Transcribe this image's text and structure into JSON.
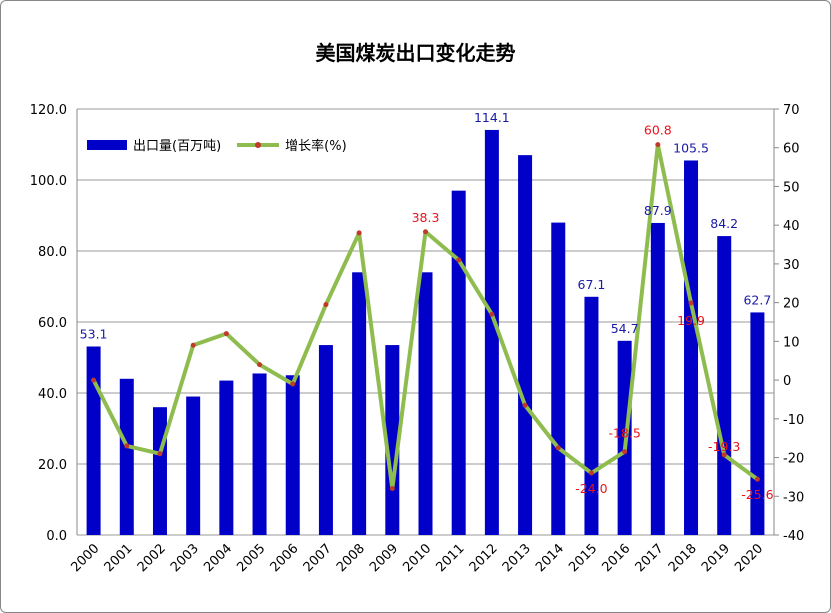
{
  "chart_data": {
    "type": "bar+line",
    "title": "美国煤炭出口变化走势",
    "categories": [
      "2000",
      "2001",
      "2002",
      "2003",
      "2004",
      "2005",
      "2006",
      "2007",
      "2008",
      "2009",
      "2010",
      "2011",
      "2012",
      "2013",
      "2014",
      "2015",
      "2016",
      "2017",
      "2018",
      "2019",
      "2020"
    ],
    "series": [
      {
        "name": "出口量(百万吨)",
        "type": "bar",
        "axis": "left",
        "color": "#0000c8",
        "values": [
          53.1,
          44.0,
          36.0,
          39.0,
          43.5,
          45.5,
          45.0,
          53.5,
          74.0,
          53.5,
          74.0,
          97.0,
          114.1,
          107.0,
          88.0,
          67.1,
          54.7,
          87.9,
          105.5,
          84.2,
          62.7
        ]
      },
      {
        "name": "增长率(%)",
        "type": "line",
        "axis": "right",
        "color": "#8fbc4f",
        "marker_color": "#c0392b",
        "values": [
          0,
          -17,
          -19,
          9,
          12,
          4,
          -1,
          19.5,
          38,
          -28,
          38.3,
          31,
          17,
          -6.5,
          -17.5,
          -24.0,
          -18.5,
          60.8,
          19.9,
          -19.3,
          -25.6
        ]
      }
    ],
    "bar_labels": {
      "2000": "53.1",
      "2012": "114.1",
      "2015": "67.1",
      "2016": "54.7",
      "2017": "87.9",
      "2018": "105.5",
      "2019": "84.2",
      "2020": "62.7"
    },
    "line_labels": {
      "2010": "38.3",
      "2015": "-24.0",
      "2016": "-18.5",
      "2017": "60.8",
      "2018": "19.9",
      "2019": "-19.3",
      "2020": "-25.6"
    },
    "y_left": {
      "range": [
        0,
        120
      ],
      "ticks": [
        "0.0",
        "20.0",
        "40.0",
        "60.0",
        "80.0",
        "100.0",
        "120.0"
      ]
    },
    "y_right": {
      "range": [
        -40,
        70
      ],
      "ticks": [
        "-40",
        "-30",
        "-20",
        "-10",
        "0",
        "10",
        "20",
        "30",
        "40",
        "50",
        "60",
        "70"
      ]
    },
    "grid": true,
    "legend": "top-left"
  }
}
